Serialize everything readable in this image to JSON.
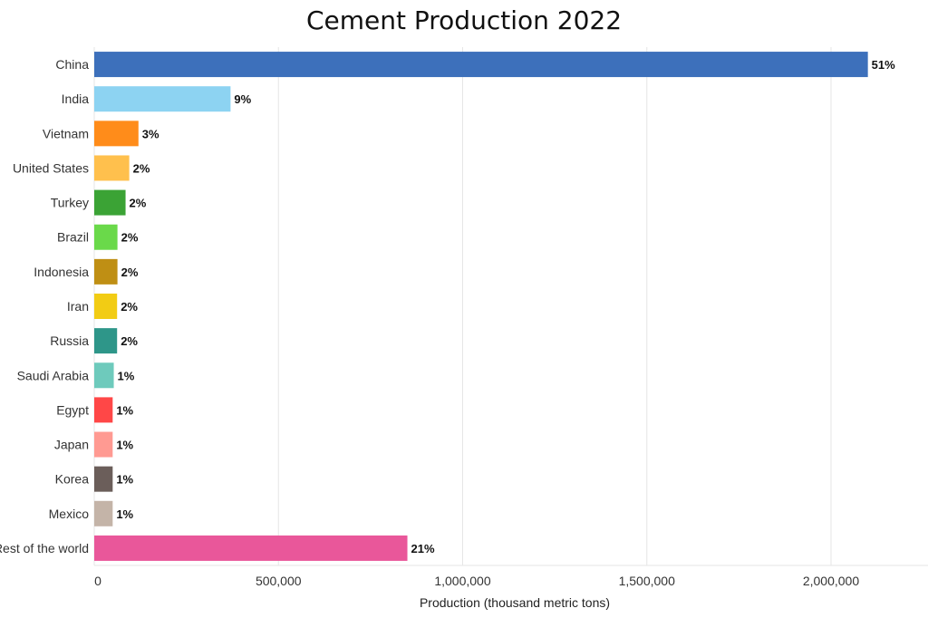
{
  "chart_data": {
    "type": "bar",
    "orientation": "horizontal",
    "title": "Cement Production 2022",
    "xlabel": "Production (thousand metric tons)",
    "ylabel": "",
    "xlim": [
      0,
      2250000
    ],
    "xticks": [
      0,
      500000,
      1000000,
      1500000,
      2000000
    ],
    "xtick_labels": [
      "0",
      "500,000",
      "1,000,000",
      "1,500,000",
      "2,000,000"
    ],
    "grid": true,
    "categories": [
      "China",
      "India",
      "Vietnam",
      "United States",
      "Turkey",
      "Brazil",
      "Indonesia",
      "Iran",
      "Russia",
      "Saudi Arabia",
      "Egypt",
      "Japan",
      "Korea",
      "Mexico",
      "Rest of the world"
    ],
    "values": [
      2100000,
      370000,
      120000,
      95000,
      85000,
      63000,
      63000,
      62000,
      62000,
      53000,
      50000,
      50000,
      50000,
      50000,
      850000
    ],
    "value_labels": [
      "51%",
      "9%",
      "3%",
      "2%",
      "2%",
      "2%",
      "2%",
      "2%",
      "2%",
      "1%",
      "1%",
      "1%",
      "1%",
      "1%",
      "21%"
    ],
    "colors": [
      "#3d70bb",
      "#8dd3f2",
      "#ff8c1a",
      "#ffc04d",
      "#3ba335",
      "#6ad94a",
      "#bf8f14",
      "#f2cc14",
      "#2e9689",
      "#6ecabc",
      "#ff4747",
      "#ff9a92",
      "#6b5e5a",
      "#c4b4a8",
      "#e9579a"
    ]
  }
}
